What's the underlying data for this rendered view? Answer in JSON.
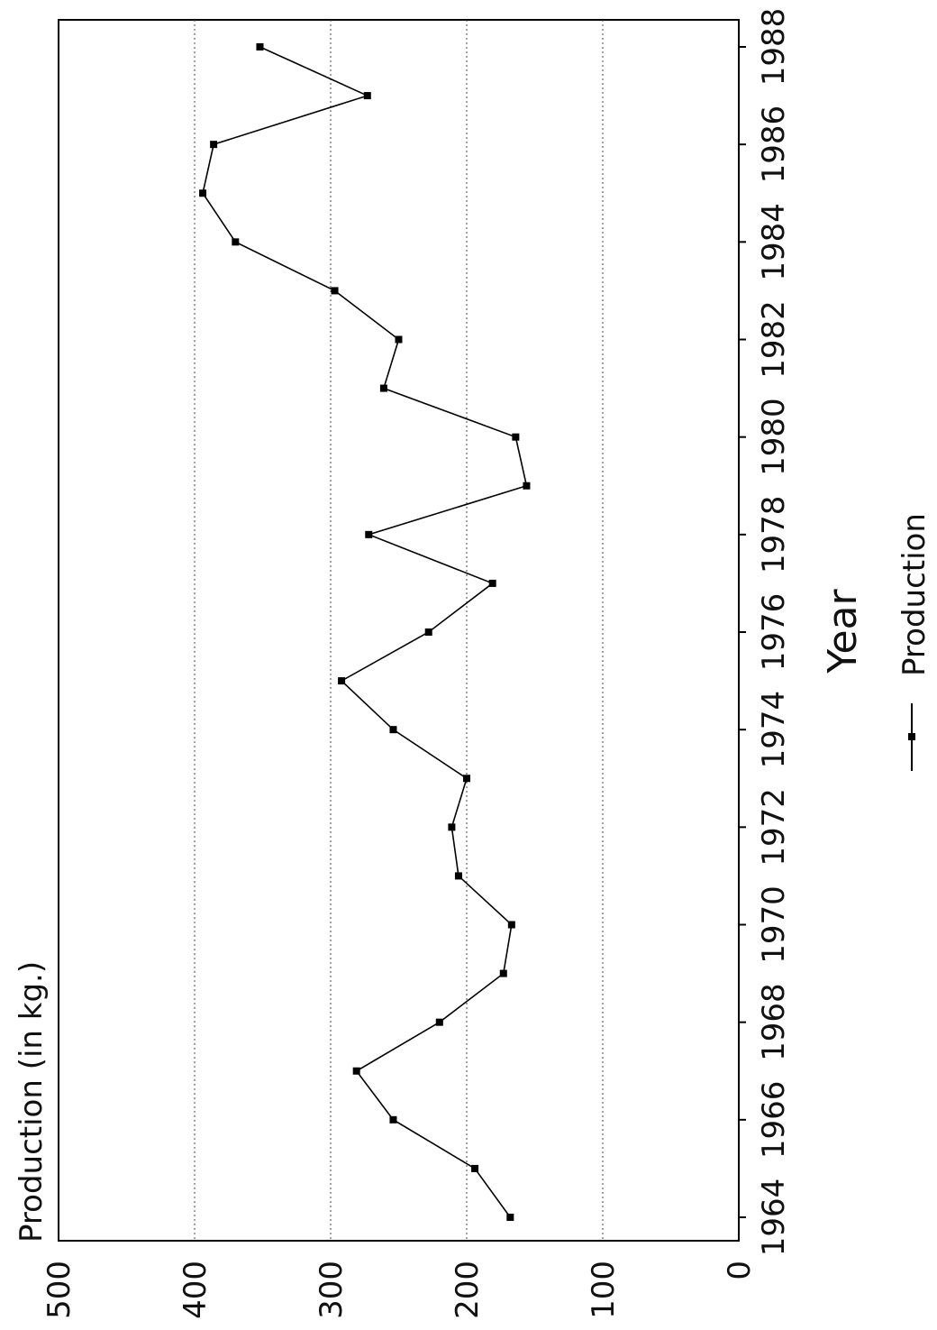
{
  "chart_data": {
    "type": "line",
    "orientation": "rotated-90-ccw",
    "xlabel": "Year",
    "ylabel": "Production (in kg.)",
    "x_tick_labels": [
      "1964",
      "1966",
      "1968",
      "1970",
      "1972",
      "1974",
      "1976",
      "1978",
      "1980",
      "1982",
      "1984",
      "1986",
      "1988"
    ],
    "y_tick_labels": [
      "0",
      "100",
      "200",
      "300",
      "400",
      "500"
    ],
    "xlim": [
      1964,
      1988.5
    ],
    "ylim": [
      0,
      500
    ],
    "grid": "horizontal-dotted",
    "legend_position": "bottom",
    "series": [
      {
        "name": "Production",
        "marker": "square",
        "color": "#000000",
        "x": [
          1964,
          1965,
          1966,
          1967,
          1968,
          1969,
          1970,
          1971,
          1972,
          1973,
          1974,
          1975,
          1976,
          1977,
          1978,
          1979,
          1980,
          1981,
          1982,
          1983,
          1984,
          1985,
          1986,
          1987,
          1988
        ],
        "values": [
          168,
          194,
          254,
          281,
          220,
          173,
          167,
          206,
          211,
          200,
          254,
          292,
          228,
          181,
          272,
          156,
          164,
          261,
          250,
          297,
          370,
          394,
          386,
          273,
          352
        ]
      }
    ]
  }
}
